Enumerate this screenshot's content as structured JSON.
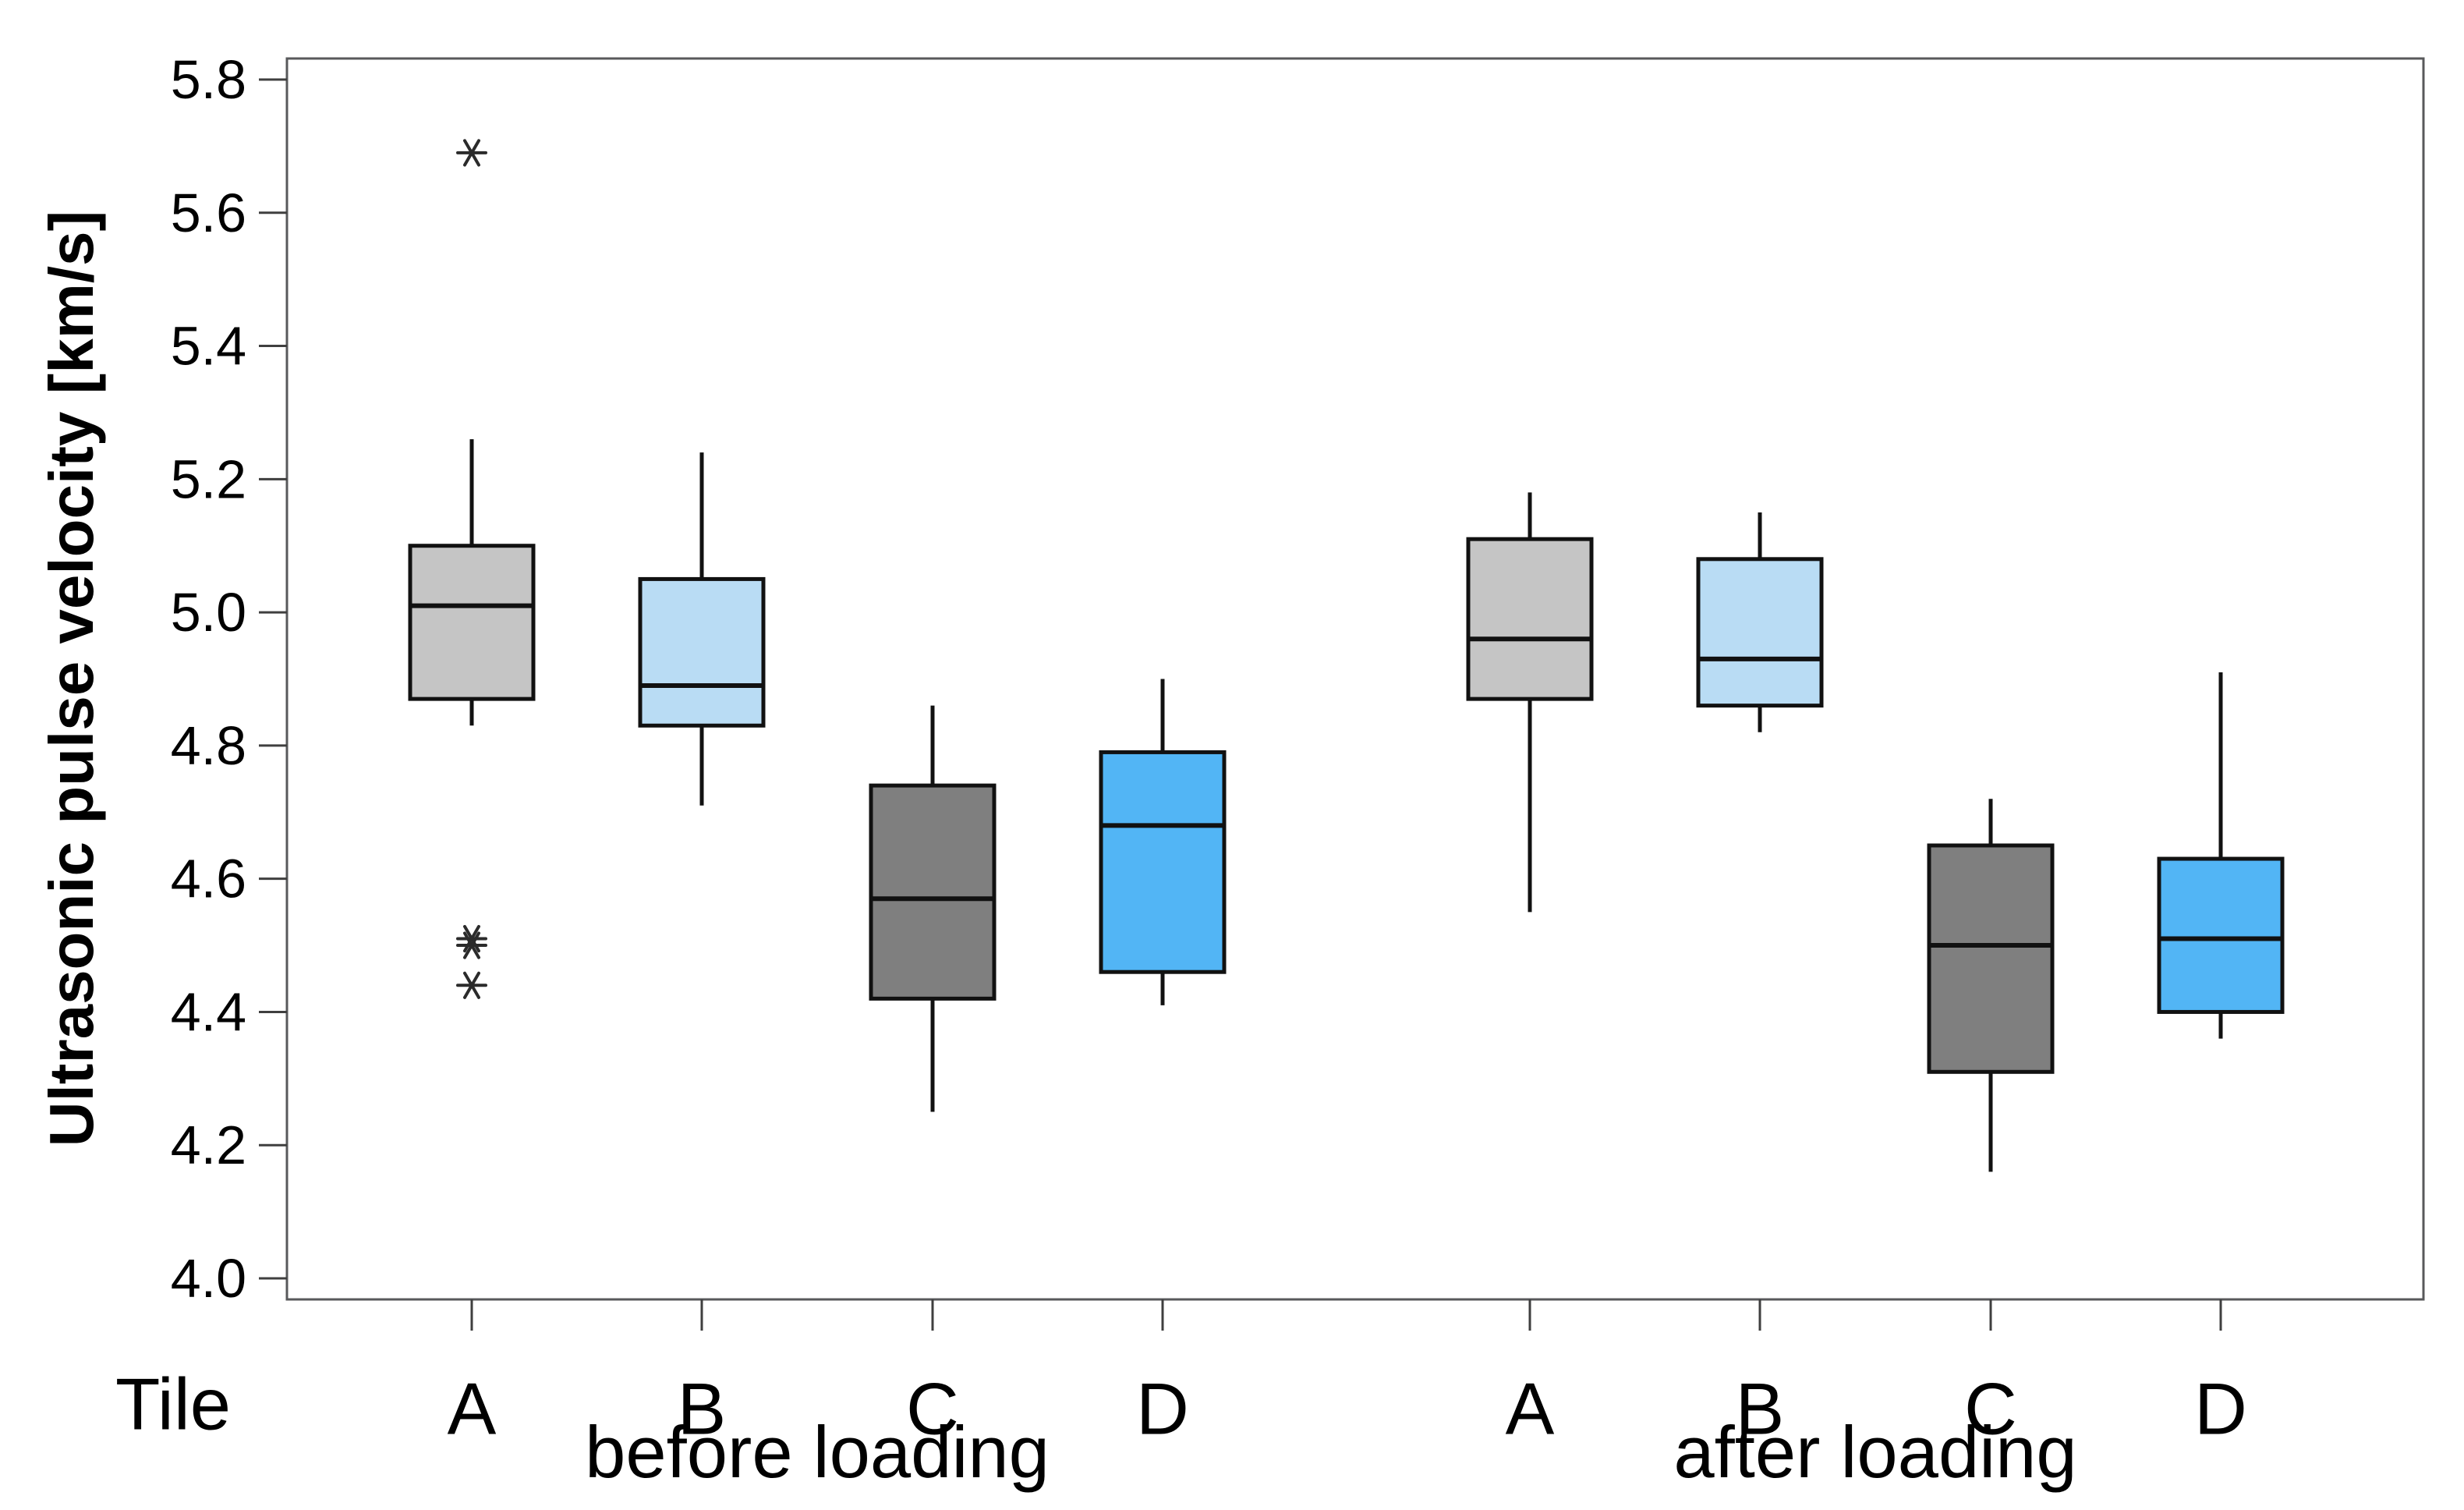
{
  "chart_data": {
    "type": "boxplot",
    "title": "",
    "ylabel": "Ultrasonic pulse velocity [km/s]",
    "xlabel": "Tile",
    "ylim": [
      4.0,
      5.8
    ],
    "yticks": [
      "4.0",
      "4.2",
      "4.4",
      "4.6",
      "4.8",
      "5.0",
      "5.2",
      "5.4",
      "5.6",
      "5.8"
    ],
    "grid": false,
    "legend": "none",
    "box_colors": {
      "A": "#c5c5c5",
      "B": "#b9dcf4",
      "C": "#7f7f7f",
      "D": "#52b5f5"
    },
    "groups": [
      {
        "label": "before loading",
        "boxes": [
          {
            "tile": "A",
            "color": "#c5c5c5",
            "whisker_low": 4.83,
            "q1": 4.87,
            "median": 5.01,
            "q3": 5.1,
            "whisker_high": 5.26,
            "outliers": [
              5.69,
              4.51,
              4.5,
              4.44
            ]
          },
          {
            "tile": "B",
            "color": "#b9dcf4",
            "whisker_low": 4.71,
            "q1": 4.83,
            "median": 4.89,
            "q3": 5.05,
            "whisker_high": 5.24,
            "outliers": []
          },
          {
            "tile": "C",
            "color": "#7f7f7f",
            "whisker_low": 4.25,
            "q1": 4.42,
            "median": 4.57,
            "q3": 4.74,
            "whisker_high": 4.86,
            "outliers": []
          },
          {
            "tile": "D",
            "color": "#52b5f5",
            "whisker_low": 4.41,
            "q1": 4.46,
            "median": 4.68,
            "q3": 4.79,
            "whisker_high": 4.9,
            "outliers": []
          }
        ]
      },
      {
        "label": "after loading",
        "boxes": [
          {
            "tile": "A",
            "color": "#c5c5c5",
            "whisker_low": 4.55,
            "q1": 4.87,
            "median": 4.96,
            "q3": 5.11,
            "whisker_high": 5.18,
            "outliers": []
          },
          {
            "tile": "B",
            "color": "#b9dcf4",
            "whisker_low": 4.82,
            "q1": 4.86,
            "median": 4.93,
            "q3": 5.08,
            "whisker_high": 5.15,
            "outliers": []
          },
          {
            "tile": "C",
            "color": "#7f7f7f",
            "whisker_low": 4.16,
            "q1": 4.31,
            "median": 4.5,
            "q3": 4.65,
            "whisker_high": 4.72,
            "outliers": []
          },
          {
            "tile": "D",
            "color": "#52b5f5",
            "whisker_low": 4.36,
            "q1": 4.4,
            "median": 4.51,
            "q3": 4.63,
            "whisker_high": 4.91,
            "outliers": []
          }
        ]
      }
    ]
  }
}
